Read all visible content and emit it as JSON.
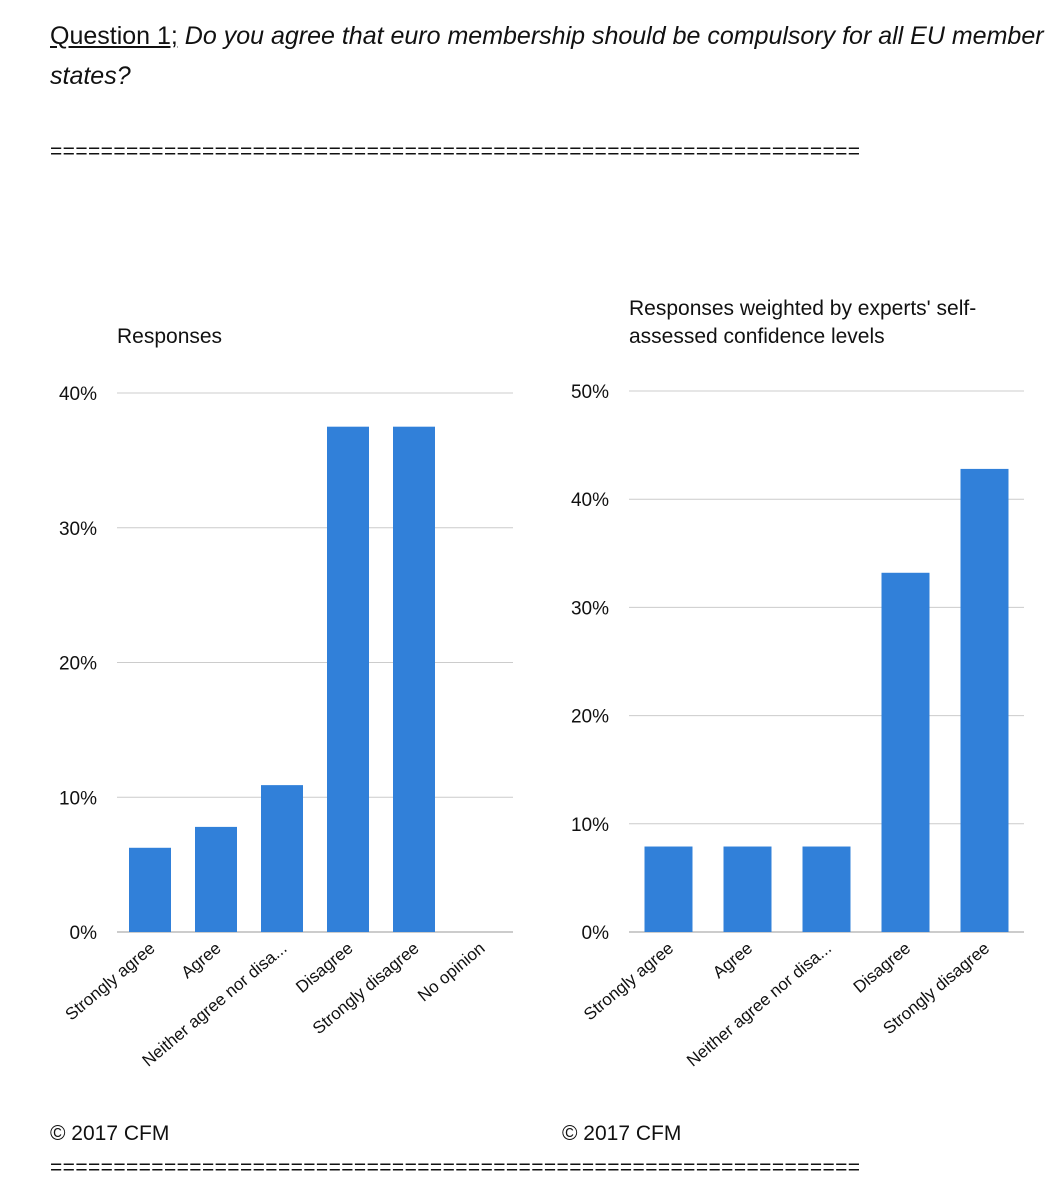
{
  "question": {
    "label": "Question 1;",
    "text": " Do you agree that euro membership should be compulsory for all EU member states?"
  },
  "divider": "================================================================",
  "copyright_left": "© 2017 CFM",
  "copyright_right": "© 2017 CFM",
  "colors": {
    "bar": "#3180D9",
    "grid": "#cccccc",
    "axis": "#333333",
    "text": "#111111"
  },
  "chart_data": [
    {
      "type": "bar",
      "title": "Responses",
      "categories": [
        "Strongly agree",
        "Agree",
        "Neither agree nor disa...",
        "Disagree",
        "Strongly disagree",
        "No opinion"
      ],
      "values": [
        6.25,
        7.8,
        10.9,
        37.5,
        37.5,
        0
      ],
      "yticks": [
        "0%",
        "10%",
        "20%",
        "30%",
        "40%"
      ],
      "ylim": [
        0,
        40
      ],
      "grid": true,
      "xlabel": "",
      "ylabel": ""
    },
    {
      "type": "bar",
      "title": "Responses weighted by experts' self-assessed confidence levels",
      "categories": [
        "Strongly agree",
        "Agree",
        "Neither agree nor disa...",
        "Disagree",
        "Strongly disagree"
      ],
      "values": [
        7.9,
        7.9,
        7.9,
        33.2,
        42.8
      ],
      "yticks": [
        "0%",
        "10%",
        "20%",
        "30%",
        "40%",
        "50%"
      ],
      "ylim": [
        0,
        50
      ],
      "grid": true,
      "xlabel": "",
      "ylabel": ""
    }
  ]
}
